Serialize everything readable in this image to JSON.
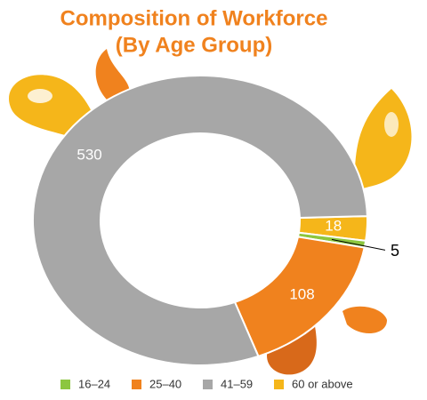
{
  "chart_data": {
    "type": "donut",
    "title": "Composition of Workforce",
    "subtitle": "(By Age Group)",
    "categories": [
      "16–24",
      "25–40",
      "41–59",
      "60 or above"
    ],
    "values": [
      5,
      108,
      530,
      18
    ],
    "colors": [
      "#8cc63f",
      "#f0821e",
      "#a7a7a7",
      "#f5b61a"
    ],
    "label_colors": [
      "#000000",
      "#ffffff",
      "#ffffff",
      "#ffffff"
    ],
    "legend": "bottom"
  }
}
